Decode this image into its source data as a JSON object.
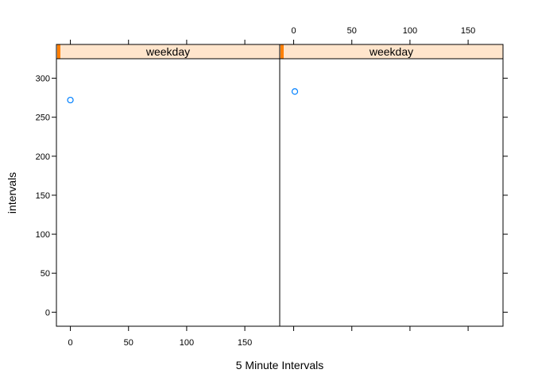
{
  "chart_data": {
    "type": "scatter",
    "xlabel": "5 Minute Intervals",
    "ylabel": "intervals",
    "xlim": [
      -12,
      180
    ],
    "ylim": [
      -18,
      325
    ],
    "x_ticks": [
      0,
      50,
      100,
      150
    ],
    "y_ticks": [
      0,
      50,
      100,
      150,
      200,
      250,
      300
    ],
    "point_color": "#0080ff",
    "strip_fill": "#ffe5cc",
    "strip_indicator": "#ff7f00",
    "panels": [
      {
        "strip": "weekday",
        "points": [
          {
            "x": 0,
            "y": 272
          }
        ]
      },
      {
        "strip": "weekday",
        "points": [
          {
            "x": 1,
            "y": 283
          }
        ]
      }
    ]
  }
}
